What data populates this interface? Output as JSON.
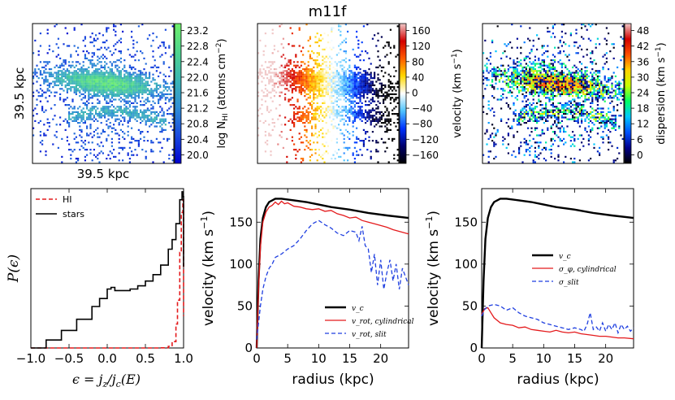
{
  "figure": {
    "title": "m11f",
    "map_x_label": "39.5 kpc",
    "map_y_label": "39.5 kpc"
  },
  "chart_data": [
    {
      "type": "heatmap",
      "id": "hi_column_density",
      "colorbar_label_pre": "log N",
      "colorbar_label_sub": "HI",
      "colorbar_label_post": " (atoms cm",
      "colorbar_label_sup": "−2",
      "colorbar_label_end": ")",
      "colorbar_ticks": [
        "23.2",
        "22.8",
        "22.4",
        "22.0",
        "21.6",
        "21.2",
        "20.8",
        "20.4",
        "20.0"
      ],
      "range": [
        19.8,
        23.3
      ],
      "colormap": [
        "#0000cc",
        "#1a4be0",
        "#2f8fd6",
        "#3bb7b3",
        "#4fd58e",
        "#6ff06a"
      ]
    },
    {
      "type": "heatmap",
      "id": "hi_velocity",
      "colorbar_label": "velocity (km s",
      "colorbar_label_sup": "−1",
      "colorbar_label_end": ")",
      "colorbar_ticks": [
        "160",
        "120",
        "80",
        "40",
        "0",
        "−40",
        "−80",
        "−120",
        "−160"
      ],
      "range": [
        -180,
        180
      ],
      "colormap": [
        "#000000",
        "#00006e",
        "#0032ff",
        "#4fc3ff",
        "#ffffff",
        "#ffd700",
        "#ff5a00",
        "#d20000",
        "#f0c8c8"
      ]
    },
    {
      "type": "heatmap",
      "id": "hi_dispersion",
      "colorbar_label": "dispersion (km s",
      "colorbar_label_sup": "−1",
      "colorbar_label_end": ")",
      "colorbar_ticks": [
        "48",
        "42",
        "36",
        "30",
        "24",
        "18",
        "12",
        "6",
        "0"
      ],
      "range": [
        0,
        52
      ],
      "colormap": [
        "#000000",
        "#00008b",
        "#0050ff",
        "#00c8ff",
        "#00ff64",
        "#c8ff00",
        "#ffd200",
        "#ff5000",
        "#d20000",
        "#f0c8c8"
      ]
    },
    {
      "type": "line",
      "id": "circularity_distribution",
      "xlabel": "ε = j_z / j_c(E)",
      "ylabel": "P(ε)",
      "xlim": [
        -1.0,
        1.0
      ],
      "ylim": [
        0,
        1
      ],
      "x_ticks": [
        "−1.0",
        "−0.5",
        "0.0",
        "0.5",
        "1.0"
      ],
      "legend_position": "top-left",
      "series": [
        {
          "name": "HI",
          "color": "#e41a1c",
          "dash": true,
          "x": [
            -1.0,
            0.5,
            0.7,
            0.8,
            0.85,
            0.9,
            0.92,
            0.95,
            0.97,
            0.99,
            1.0
          ],
          "values": [
            0,
            0,
            0.001,
            0.01,
            0.04,
            0.15,
            0.3,
            0.6,
            0.85,
            0.93,
            0.2
          ]
        },
        {
          "name": "stars",
          "color": "#000000",
          "dash": false,
          "x": [
            -1.0,
            -0.8,
            -0.6,
            -0.4,
            -0.2,
            -0.1,
            0.0,
            0.05,
            0.1,
            0.2,
            0.3,
            0.4,
            0.5,
            0.6,
            0.7,
            0.8,
            0.85,
            0.9,
            0.95,
            0.98,
            0.99,
            1.0
          ],
          "values": [
            0.0,
            0.05,
            0.11,
            0.18,
            0.26,
            0.31,
            0.37,
            0.38,
            0.36,
            0.36,
            0.37,
            0.39,
            0.42,
            0.46,
            0.52,
            0.62,
            0.68,
            0.78,
            0.93,
            0.98,
            0.95,
            0.51
          ]
        }
      ]
    },
    {
      "type": "line",
      "id": "rotation_curve",
      "xlabel": "radius (kpc)",
      "ylabel": "velocity (km s",
      "ylabel_sup": "−1",
      "ylabel_end": ")",
      "xlim": [
        0,
        24.5
      ],
      "ylim": [
        0,
        190
      ],
      "x_ticks": [
        0,
        5,
        10,
        15,
        20
      ],
      "y_ticks": [
        0,
        50,
        100,
        150
      ],
      "legend_position": "lower-right",
      "series": [
        {
          "name": "v_c",
          "color": "#000000",
          "dash": false,
          "width": 2.4,
          "x": [
            0,
            0.3,
            0.6,
            1.0,
            1.5,
            2.0,
            3.0,
            4.0,
            6.0,
            8.0,
            10.0,
            12.0,
            15.0,
            18.0,
            21.0,
            24.5
          ],
          "values": [
            0,
            80,
            130,
            155,
            168,
            174,
            178,
            178,
            176,
            174,
            171,
            168,
            165,
            161,
            158,
            155
          ]
        },
        {
          "name": "v_rot, cylindrical",
          "color": "#e41a1c",
          "dash": false,
          "width": 1.3,
          "x": [
            0,
            0.3,
            0.6,
            1.0,
            1.5,
            2.0,
            2.5,
            3.0,
            3.5,
            4.0,
            4.5,
            5.0,
            6.0,
            7.0,
            8.0,
            9.0,
            10.0,
            11.0,
            12.0,
            13.0,
            14.0,
            15.0,
            16.0,
            17.0,
            18.0,
            19.0,
            20.0,
            21.0,
            22.0,
            23.0,
            24.5
          ],
          "values": [
            0,
            70,
            120,
            150,
            162,
            168,
            170,
            174,
            171,
            175,
            172,
            173,
            169,
            168,
            166,
            165,
            166,
            163,
            164,
            160,
            158,
            155,
            156,
            152,
            150,
            148,
            146,
            144,
            141,
            139,
            136
          ]
        },
        {
          "name": "v_rot, slit",
          "color": "#1f3fe0",
          "dash": true,
          "width": 1.3,
          "x": [
            0,
            0.3,
            0.6,
            1.0,
            1.5,
            2.0,
            2.5,
            3.0,
            4.0,
            5.0,
            6.0,
            7.0,
            8.0,
            9.0,
            10.0,
            11.0,
            12.0,
            13.0,
            14.0,
            15.0,
            16.0,
            16.5,
            17.0,
            17.5,
            18.0,
            18.5,
            19.0,
            19.5,
            20.0,
            20.5,
            21.0,
            21.5,
            22.0,
            22.5,
            23.0,
            23.5,
            24.0,
            24.5
          ],
          "values": [
            10,
            30,
            50,
            70,
            85,
            95,
            100,
            108,
            112,
            118,
            122,
            130,
            140,
            148,
            152,
            147,
            143,
            137,
            134,
            140,
            138,
            128,
            145,
            122,
            118,
            90,
            112,
            75,
            105,
            70,
            90,
            105,
            80,
            100,
            70,
            95,
            85,
            75
          ]
        }
      ]
    },
    {
      "type": "line",
      "id": "dispersion_profile",
      "xlabel": "radius (kpc)",
      "ylabel": "velocity (km s",
      "ylabel_sup": "−1",
      "ylabel_end": ")",
      "xlim": [
        0,
        24.5
      ],
      "ylim": [
        0,
        190
      ],
      "x_ticks": [
        0,
        5,
        10,
        15,
        20
      ],
      "y_ticks": [
        0,
        50,
        100,
        150
      ],
      "legend_position": "center-right",
      "series": [
        {
          "name": "v_c",
          "color": "#000000",
          "dash": false,
          "width": 2.4,
          "x": [
            0,
            0.3,
            0.6,
            1.0,
            1.5,
            2.0,
            3.0,
            4.0,
            6.0,
            8.0,
            10.0,
            12.0,
            15.0,
            18.0,
            21.0,
            24.5
          ],
          "values": [
            0,
            80,
            130,
            155,
            168,
            174,
            178,
            178,
            176,
            174,
            171,
            168,
            165,
            161,
            158,
            155
          ]
        },
        {
          "name": "σ_φ, cylindrical",
          "color": "#e41a1c",
          "dash": false,
          "width": 1.3,
          "x": [
            0,
            0.5,
            1.0,
            1.5,
            2.0,
            3.0,
            4.0,
            5.0,
            6.0,
            7.0,
            8.0,
            9.0,
            10.0,
            11.0,
            12.0,
            13.0,
            14.0,
            15.0,
            16.0,
            17.0,
            18.0,
            19.0,
            20.0,
            21.0,
            22.0,
            23.0,
            24.5
          ],
          "values": [
            40,
            47,
            48,
            42,
            36,
            30,
            28,
            27,
            24,
            25,
            22,
            21,
            20,
            19,
            21,
            19,
            18,
            19,
            17,
            16,
            15,
            14,
            14,
            13,
            12,
            12,
            11
          ]
        },
        {
          "name": "σ_slit",
          "color": "#1f3fe0",
          "dash": true,
          "width": 1.3,
          "x": [
            0,
            0.5,
            1.0,
            2.0,
            3.0,
            4.0,
            5.0,
            6.0,
            7.0,
            8.0,
            9.0,
            10.0,
            11.0,
            12.0,
            13.0,
            14.0,
            15.0,
            16.0,
            16.5,
            17.0,
            17.5,
            18.0,
            18.5,
            19.0,
            19.5,
            20.0,
            20.5,
            21.0,
            21.5,
            22.0,
            22.5,
            23.0,
            23.5,
            24.0,
            24.5
          ],
          "values": [
            38,
            46,
            50,
            52,
            50,
            45,
            48,
            42,
            38,
            36,
            34,
            30,
            28,
            26,
            24,
            22,
            24,
            22,
            20,
            28,
            42,
            22,
            25,
            20,
            30,
            20,
            28,
            22,
            30,
            18,
            28,
            22,
            26,
            20,
            24
          ]
        }
      ]
    }
  ]
}
